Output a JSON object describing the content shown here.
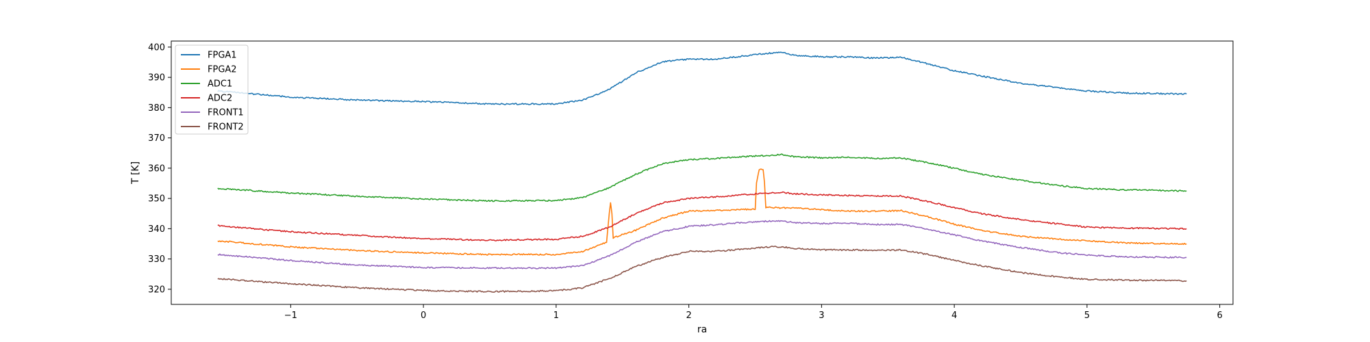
{
  "chart_data": {
    "type": "line",
    "title": "",
    "xlabel": "ra",
    "ylabel": "T [K]",
    "xlim": [
      -1.9,
      6.1
    ],
    "ylim": [
      315,
      402
    ],
    "xticks": [
      -1,
      0,
      1,
      2,
      3,
      4,
      5,
      6
    ],
    "xtick_labels": [
      "−1",
      "0",
      "1",
      "2",
      "3",
      "4",
      "5",
      "6"
    ],
    "yticks": [
      320,
      330,
      340,
      350,
      360,
      370,
      380,
      390,
      400
    ],
    "ytick_labels": [
      "320",
      "330",
      "340",
      "350",
      "360",
      "370",
      "380",
      "390",
      "400"
    ],
    "grid": false,
    "legend": "upper-left",
    "series": [
      {
        "name": "FPGA1",
        "color": "#1f77b4",
        "x": [
          -1.55,
          -1.0,
          -0.5,
          0.0,
          0.5,
          1.0,
          1.2,
          1.4,
          1.6,
          1.8,
          2.0,
          2.2,
          2.4,
          2.6,
          2.7,
          2.8,
          3.0,
          3.2,
          3.4,
          3.6,
          3.8,
          4.0,
          4.2,
          4.5,
          4.8,
          5.0,
          5.3,
          5.75
        ],
        "y": [
          385.5,
          383.5,
          382.5,
          382.0,
          381.2,
          381.2,
          382.5,
          386.0,
          391.5,
          395.2,
          396.0,
          396.0,
          397.0,
          398.0,
          398.2,
          397.3,
          396.8,
          396.8,
          396.4,
          396.6,
          394.5,
          392.2,
          390.5,
          388.0,
          386.5,
          385.5,
          384.8,
          384.5
        ]
      },
      {
        "name": "FPGA2",
        "color": "#ff7f0e",
        "x": [
          -1.55,
          -1.0,
          -0.5,
          0.0,
          0.5,
          1.0,
          1.2,
          1.38,
          1.4,
          1.41,
          1.42,
          1.43,
          1.6,
          1.8,
          2.0,
          2.2,
          2.5,
          2.51,
          2.53,
          2.56,
          2.57,
          2.58,
          2.8,
          3.0,
          3.2,
          3.4,
          3.6,
          3.8,
          4.0,
          4.2,
          4.5,
          4.8,
          5.0,
          5.3,
          5.75
        ],
        "y": [
          336.0,
          334.0,
          332.8,
          332.0,
          331.5,
          331.5,
          332.5,
          335.5,
          345.0,
          348.5,
          345.0,
          337.0,
          339.5,
          343.5,
          345.8,
          346.0,
          346.5,
          355.0,
          359.5,
          359.5,
          355.0,
          347.0,
          346.8,
          346.3,
          345.8,
          345.8,
          346.0,
          344.0,
          341.5,
          339.5,
          337.5,
          336.5,
          336.0,
          335.3,
          335.0
        ]
      },
      {
        "name": "ADC1",
        "color": "#2ca02c",
        "x": [
          -1.55,
          -1.0,
          -0.5,
          0.0,
          0.5,
          1.0,
          1.2,
          1.4,
          1.6,
          1.8,
          2.0,
          2.2,
          2.4,
          2.6,
          2.7,
          2.8,
          3.0,
          3.2,
          3.4,
          3.6,
          3.8,
          4.0,
          4.2,
          4.5,
          4.8,
          5.0,
          5.3,
          5.75
        ],
        "y": [
          353.3,
          351.8,
          350.7,
          349.8,
          349.2,
          349.3,
          350.3,
          353.5,
          358.0,
          361.5,
          362.8,
          363.2,
          363.8,
          364.2,
          364.5,
          363.8,
          363.4,
          363.6,
          363.2,
          363.4,
          361.8,
          360.0,
          358.0,
          356.0,
          354.2,
          353.3,
          352.8,
          352.5
        ]
      },
      {
        "name": "ADC2",
        "color": "#d62728",
        "x": [
          -1.55,
          -1.0,
          -0.5,
          0.0,
          0.5,
          1.0,
          1.2,
          1.4,
          1.6,
          1.8,
          2.0,
          2.2,
          2.4,
          2.6,
          2.7,
          2.8,
          3.0,
          3.2,
          3.4,
          3.6,
          3.8,
          4.0,
          4.2,
          4.5,
          4.8,
          5.0,
          5.3,
          5.75
        ],
        "y": [
          341.0,
          339.0,
          337.8,
          336.7,
          336.2,
          336.5,
          337.5,
          340.5,
          345.0,
          348.5,
          350.0,
          350.5,
          351.2,
          351.8,
          352.0,
          351.5,
          351.2,
          351.0,
          350.8,
          350.8,
          349.0,
          347.0,
          345.0,
          343.0,
          341.5,
          340.5,
          340.2,
          340.0
        ]
      },
      {
        "name": "FRONT1",
        "color": "#9467bd",
        "x": [
          -1.55,
          -1.0,
          -0.5,
          0.0,
          0.5,
          1.0,
          1.2,
          1.4,
          1.6,
          1.8,
          2.0,
          2.2,
          2.4,
          2.6,
          2.7,
          2.8,
          3.0,
          3.2,
          3.4,
          3.6,
          3.8,
          4.0,
          4.2,
          4.5,
          4.8,
          5.0,
          5.3,
          5.75
        ],
        "y": [
          331.5,
          329.5,
          328.0,
          327.2,
          327.0,
          327.0,
          327.8,
          331.0,
          335.5,
          339.0,
          340.8,
          341.3,
          342.0,
          342.5,
          342.5,
          342.0,
          341.7,
          341.8,
          341.4,
          341.4,
          339.8,
          338.0,
          336.0,
          333.8,
          332.0,
          331.3,
          330.7,
          330.5
        ]
      },
      {
        "name": "FRONT2",
        "color": "#8c564b",
        "x": [
          -1.55,
          -1.0,
          -0.5,
          0.0,
          0.5,
          1.0,
          1.2,
          1.4,
          1.6,
          1.8,
          2.0,
          2.2,
          2.4,
          2.6,
          2.7,
          2.8,
          3.0,
          3.2,
          3.4,
          3.6,
          3.8,
          4.0,
          4.2,
          4.5,
          4.8,
          5.0,
          5.3,
          5.75
        ],
        "y": [
          323.5,
          321.8,
          320.5,
          319.6,
          319.2,
          319.5,
          320.5,
          323.5,
          327.5,
          330.5,
          332.5,
          332.5,
          333.2,
          334.0,
          334.0,
          333.5,
          333.0,
          333.0,
          332.8,
          333.0,
          331.5,
          329.5,
          327.8,
          325.5,
          324.0,
          323.3,
          323.0,
          322.8
        ]
      }
    ]
  }
}
